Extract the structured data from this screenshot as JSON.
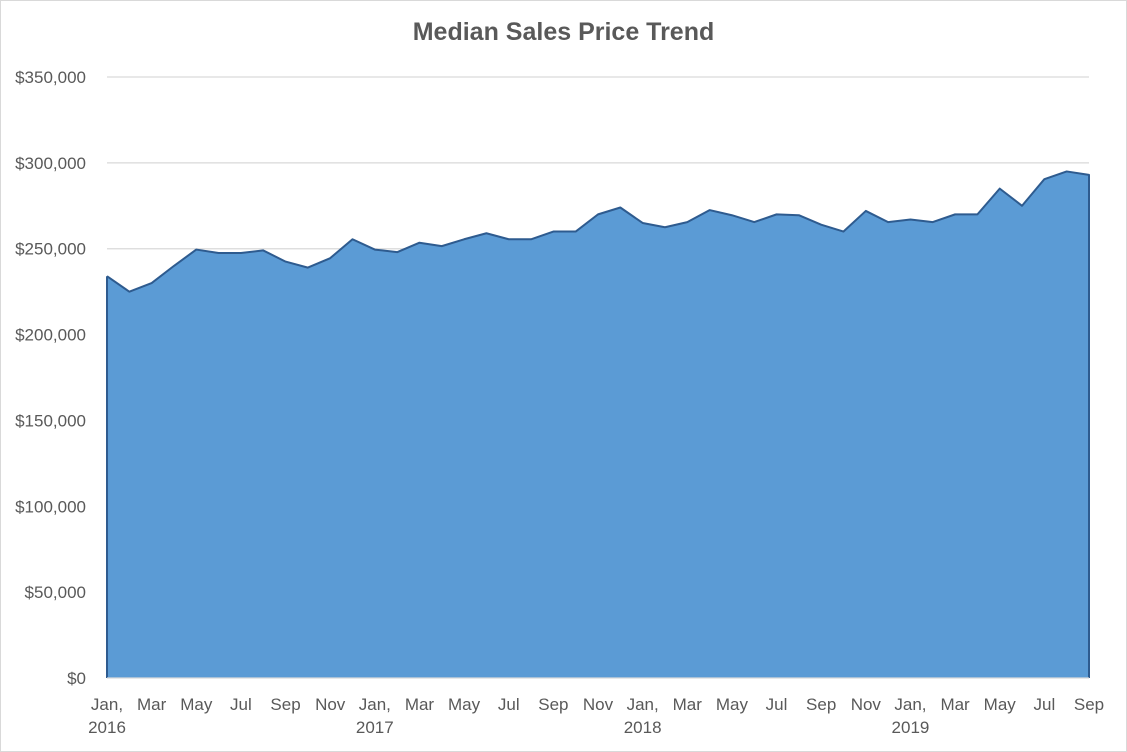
{
  "chart_data": {
    "type": "area",
    "title": "Median Sales Price Trend",
    "xlabel": "",
    "ylabel": "",
    "ylim": [
      0,
      350000
    ],
    "y_ticks": [
      {
        "value": 0,
        "label": "$0"
      },
      {
        "value": 50000,
        "label": "$50,000"
      },
      {
        "value": 100000,
        "label": "$100,000"
      },
      {
        "value": 150000,
        "label": "$150,000"
      },
      {
        "value": 200000,
        "label": "$200,000"
      },
      {
        "value": 250000,
        "label": "$250,000"
      },
      {
        "value": 300000,
        "label": "$300,000"
      },
      {
        "value": 350000,
        "label": "$350,000"
      }
    ],
    "x": [
      "2016-01",
      "2016-02",
      "2016-03",
      "2016-04",
      "2016-05",
      "2016-06",
      "2016-07",
      "2016-08",
      "2016-09",
      "2016-10",
      "2016-11",
      "2016-12",
      "2017-01",
      "2017-02",
      "2017-03",
      "2017-04",
      "2017-05",
      "2017-06",
      "2017-07",
      "2017-08",
      "2017-09",
      "2017-10",
      "2017-11",
      "2017-12",
      "2018-01",
      "2018-02",
      "2018-03",
      "2018-04",
      "2018-05",
      "2018-06",
      "2018-07",
      "2018-08",
      "2018-09",
      "2018-10",
      "2018-11",
      "2018-12",
      "2019-01",
      "2019-02",
      "2019-03",
      "2019-04",
      "2019-05",
      "2019-06",
      "2019-07",
      "2019-08",
      "2019-09"
    ],
    "x_ticks": [
      {
        "month": "2016-01",
        "label": "Jan,",
        "year": "2016"
      },
      {
        "month": "2016-03",
        "label": "Mar"
      },
      {
        "month": "2016-05",
        "label": "May"
      },
      {
        "month": "2016-07",
        "label": "Jul"
      },
      {
        "month": "2016-09",
        "label": "Sep"
      },
      {
        "month": "2016-11",
        "label": "Nov"
      },
      {
        "month": "2017-01",
        "label": "Jan,",
        "year": "2017"
      },
      {
        "month": "2017-03",
        "label": "Mar"
      },
      {
        "month": "2017-05",
        "label": "May"
      },
      {
        "month": "2017-07",
        "label": "Jul"
      },
      {
        "month": "2017-09",
        "label": "Sep"
      },
      {
        "month": "2017-11",
        "label": "Nov"
      },
      {
        "month": "2018-01",
        "label": "Jan,",
        "year": "2018"
      },
      {
        "month": "2018-03",
        "label": "Mar"
      },
      {
        "month": "2018-05",
        "label": "May"
      },
      {
        "month": "2018-07",
        "label": "Jul"
      },
      {
        "month": "2018-09",
        "label": "Sep"
      },
      {
        "month": "2018-11",
        "label": "Nov"
      },
      {
        "month": "2019-01",
        "label": "Jan,",
        "year": "2019"
      },
      {
        "month": "2019-03",
        "label": "Mar"
      },
      {
        "month": "2019-05",
        "label": "May"
      },
      {
        "month": "2019-07",
        "label": "Jul"
      },
      {
        "month": "2019-09",
        "label": "Sep"
      }
    ],
    "series": [
      {
        "values": [
          234000,
          225000,
          230000,
          240000,
          249500,
          247500,
          247500,
          249000,
          242500,
          239000,
          244500,
          255500,
          249500,
          248000,
          253500,
          251500,
          255500,
          259000,
          255500,
          255500,
          260000,
          260000,
          270000,
          274000,
          265000,
          262500,
          265500,
          272500,
          269500,
          265500,
          270000,
          269500,
          264000,
          260000,
          272000,
          265500,
          267000,
          265500,
          270000,
          270000,
          285000,
          275000,
          290500,
          295000,
          293000
        ]
      }
    ],
    "grid": true,
    "legend": "none",
    "colors": {
      "fill": "#5b9bd5",
      "line": "#2e5b8f",
      "grid": "#d9d9d9",
      "text": "#595959"
    }
  }
}
